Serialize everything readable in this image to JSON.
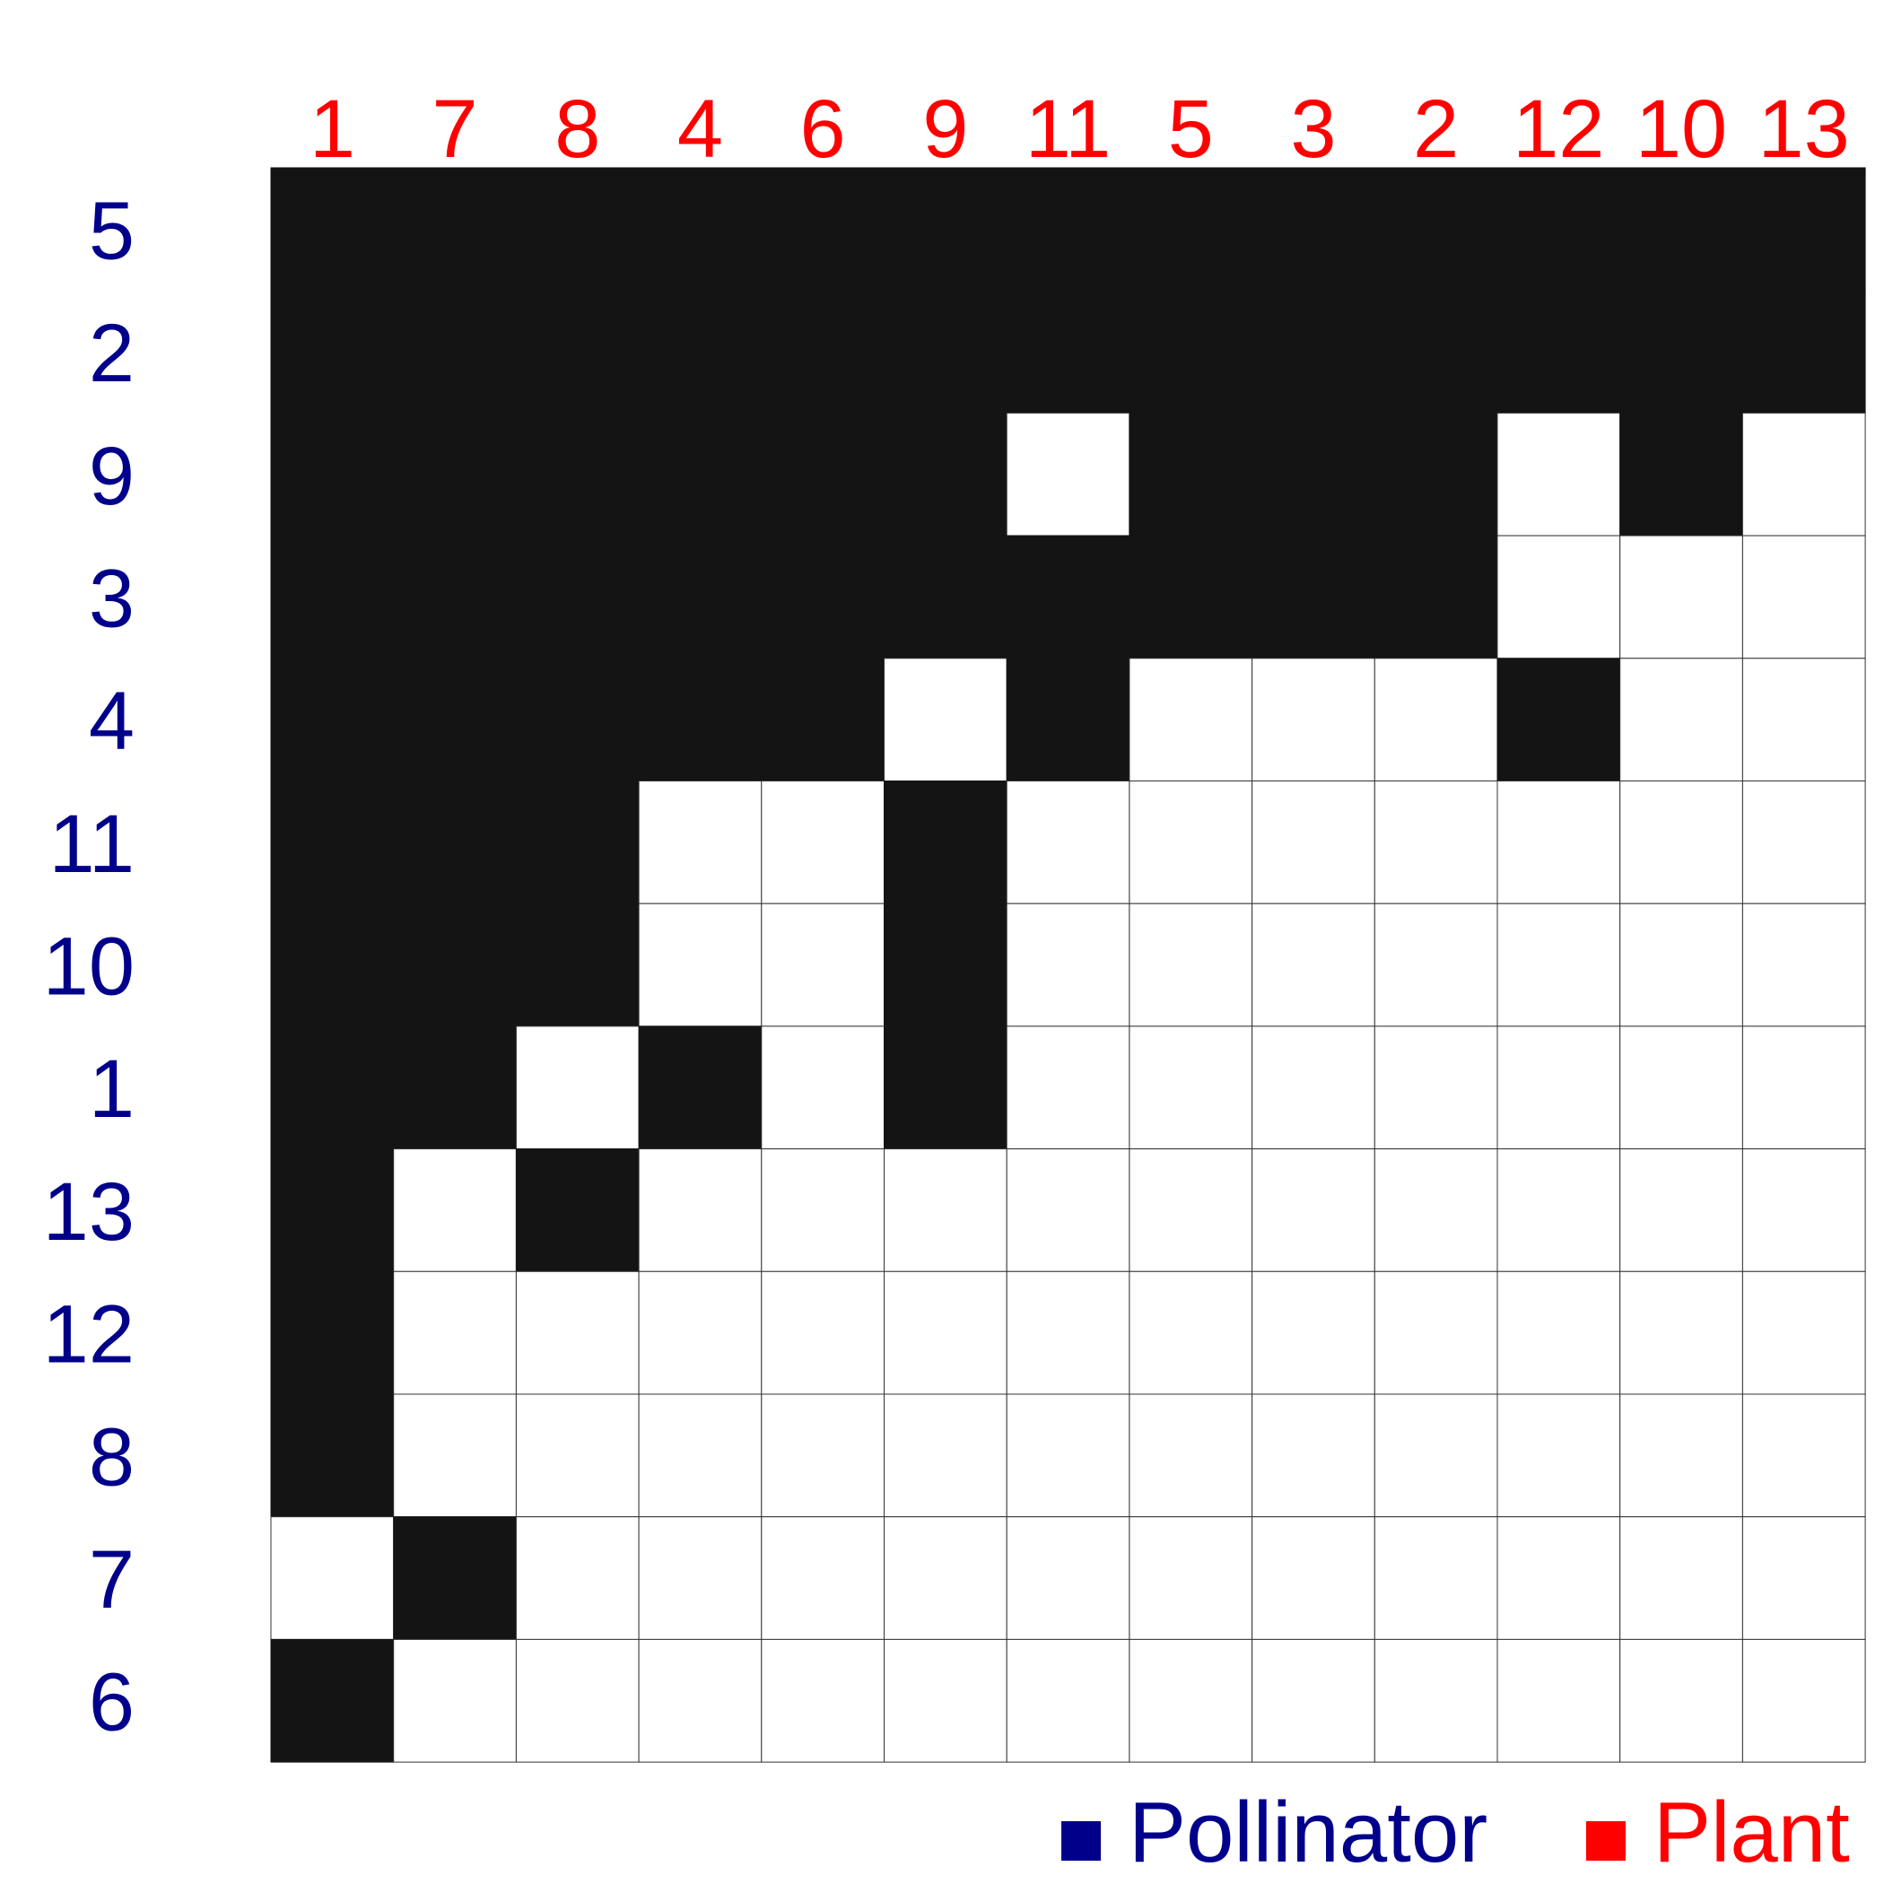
{
  "chart_data": {
    "type": "heatmap",
    "title": "",
    "columns": [
      "1",
      "7",
      "8",
      "4",
      "6",
      "9",
      "11",
      "5",
      "3",
      "2",
      "12",
      "10",
      "13"
    ],
    "rows": [
      "5",
      "2",
      "9",
      "3",
      "4",
      "11",
      "10",
      "1",
      "13",
      "12",
      "8",
      "7",
      "6"
    ],
    "matrix": [
      [
        1,
        1,
        1,
        1,
        1,
        1,
        1,
        1,
        1,
        1,
        1,
        1,
        1
      ],
      [
        1,
        1,
        1,
        1,
        1,
        1,
        1,
        1,
        1,
        1,
        1,
        1,
        1
      ],
      [
        1,
        1,
        1,
        1,
        1,
        1,
        0,
        1,
        1,
        1,
        0,
        1,
        0
      ],
      [
        1,
        1,
        1,
        1,
        1,
        1,
        1,
        1,
        1,
        1,
        0,
        0,
        0
      ],
      [
        1,
        1,
        1,
        1,
        1,
        0,
        1,
        0,
        0,
        0,
        1,
        0,
        0
      ],
      [
        1,
        1,
        1,
        0,
        0,
        1,
        0,
        0,
        0,
        0,
        0,
        0,
        0
      ],
      [
        1,
        1,
        1,
        0,
        0,
        1,
        0,
        0,
        0,
        0,
        0,
        0,
        0
      ],
      [
        1,
        1,
        0,
        1,
        0,
        1,
        0,
        0,
        0,
        0,
        0,
        0,
        0
      ],
      [
        1,
        0,
        1,
        0,
        0,
        0,
        0,
        0,
        0,
        0,
        0,
        0,
        0
      ],
      [
        1,
        0,
        0,
        0,
        0,
        0,
        0,
        0,
        0,
        0,
        0,
        0,
        0
      ],
      [
        1,
        0,
        0,
        0,
        0,
        0,
        0,
        0,
        0,
        0,
        0,
        0,
        0
      ],
      [
        0,
        1,
        0,
        0,
        0,
        0,
        0,
        0,
        0,
        0,
        0,
        0,
        0
      ],
      [
        1,
        0,
        0,
        0,
        0,
        0,
        0,
        0,
        0,
        0,
        0,
        0,
        0
      ]
    ],
    "legend": [
      {
        "label": "Pollinator",
        "color": "#00008b"
      },
      {
        "label": "Plant",
        "color": "#ff0000"
      }
    ],
    "legend_position": "bottom-right",
    "colors": {
      "filled": "#141414",
      "empty": "#ffffff",
      "grid": "#333333",
      "column_labels": "#ff0000",
      "row_labels": "#00008b"
    }
  }
}
